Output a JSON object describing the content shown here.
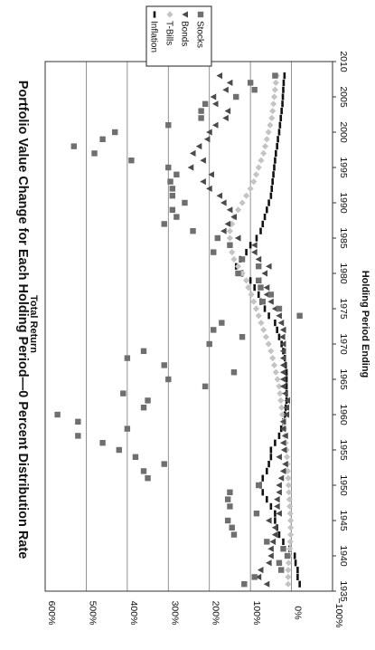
{
  "chart_data": {
    "type": "scatter",
    "title": "Portfolio Value Change for Each Holding Period—0 Percent Distribution Rate",
    "xlabel": "Holding Period Ending",
    "ylabel": "Total Return",
    "xlim": [
      1935,
      2010
    ],
    "ylim": [
      -100,
      600
    ],
    "xticks": [
      "1935",
      "1940",
      "1945",
      "1950",
      "1955",
      "1960",
      "1965",
      "1970",
      "1975",
      "1980",
      "1985",
      "1990",
      "1995",
      "2000",
      "2005",
      "2010"
    ],
    "yticks": [
      "−100%",
      "0%",
      "100%",
      "200%",
      "300%",
      "400%",
      "500%",
      "600%"
    ],
    "grid": "horizontal",
    "legend_position": "top-right",
    "orientation": "rotated 90° counterclockwise",
    "series": [
      {
        "name": "Stocks",
        "marker": "square",
        "color": "#6f6f6f",
        "x": [
          1936,
          1937,
          1938,
          1939,
          1940,
          1941,
          1942,
          1943,
          1944,
          1945,
          1946,
          1947,
          1948,
          1949,
          1950,
          1951,
          1952,
          1953,
          1954,
          1955,
          1956,
          1957,
          1958,
          1959,
          1960,
          1961,
          1962,
          1963,
          1964,
          1965,
          1966,
          1967,
          1968,
          1969,
          1970,
          1971,
          1972,
          1973,
          1974,
          1975,
          1976,
          1977,
          1978,
          1979,
          1980,
          1981,
          1982,
          1983,
          1984,
          1985,
          1986,
          1987,
          1988,
          1989,
          1990,
          1991,
          1992,
          1993,
          1994,
          1995,
          1996,
          1997,
          1998,
          1999,
          2000,
          2001,
          2002,
          2003,
          2004,
          2005,
          2006,
          2007,
          2008
        ],
        "y": [
          115,
          90,
          25,
          30,
          10,
          20,
          60,
          140,
          145,
          155,
          85,
          150,
          155,
          150,
          80,
          350,
          360,
          310,
          380,
          420,
          460,
          520,
          400,
          520,
          570,
          360,
          350,
          410,
          210,
          300,
          140,
          310,
          400,
          360,
          200,
          120,
          190,
          170,
          -20,
          30,
          70,
          50,
          75,
          80,
          130,
          80,
          120,
          190,
          150,
          180,
          240,
          310,
          280,
          290,
          260,
          290,
          290,
          295,
          280,
          300,
          390,
          480,
          530,
          460,
          430,
          300,
          220,
          220,
          210,
          135,
          90,
          100,
          40
        ]
      },
      {
        "name": "Bonds",
        "marker": "triangle",
        "color": "#4a4a4a",
        "x": [
          1936,
          1937,
          1938,
          1939,
          1940,
          1941,
          1942,
          1943,
          1944,
          1945,
          1946,
          1947,
          1948,
          1949,
          1950,
          1951,
          1952,
          1953,
          1954,
          1955,
          1956,
          1957,
          1958,
          1959,
          1960,
          1961,
          1962,
          1963,
          1964,
          1965,
          1966,
          1967,
          1968,
          1969,
          1970,
          1971,
          1972,
          1973,
          1974,
          1975,
          1976,
          1977,
          1978,
          1979,
          1980,
          1981,
          1982,
          1983,
          1984,
          1985,
          1986,
          1987,
          1988,
          1989,
          1990,
          1991,
          1992,
          1993,
          1994,
          1995,
          1996,
          1997,
          1998,
          1999,
          2000,
          2001,
          2002,
          2003,
          2004,
          2005,
          2006,
          2007,
          2008
        ],
        "y": [
          60,
          80,
          75,
          55,
          50,
          50,
          45,
          40,
          40,
          55,
          30,
          35,
          35,
          30,
          30,
          25,
          20,
          15,
          30,
          18,
          20,
          15,
          20,
          20,
          12,
          12,
          10,
          15,
          20,
          20,
          20,
          20,
          20,
          20,
          20,
          22,
          20,
          25,
          30,
          40,
          50,
          60,
          60,
          80,
          65,
          55,
          80,
          90,
          90,
          130,
          165,
          155,
          140,
          150,
          165,
          175,
          200,
          215,
          195,
          245,
          215,
          240,
          225,
          205,
          200,
          185,
          160,
          155,
          185,
          190,
          160,
          150,
          175
        ]
      },
      {
        "name": "T-Bills",
        "marker": "diamond",
        "color": "#c4c4c4",
        "x": [
          1936,
          1937,
          1938,
          1939,
          1940,
          1941,
          1942,
          1943,
          1944,
          1945,
          1946,
          1947,
          1948,
          1949,
          1950,
          1951,
          1952,
          1953,
          1954,
          1955,
          1956,
          1957,
          1958,
          1959,
          1960,
          1961,
          1962,
          1963,
          1964,
          1965,
          1966,
          1967,
          1968,
          1969,
          1970,
          1971,
          1972,
          1973,
          1974,
          1975,
          1976,
          1977,
          1978,
          1979,
          1980,
          1981,
          1982,
          1983,
          1984,
          1985,
          1986,
          1987,
          1988,
          1989,
          1990,
          1991,
          1992,
          1993,
          1994,
          1995,
          1996,
          1997,
          1998,
          1999,
          2000,
          2001,
          2002,
          2003,
          2004,
          2005,
          2006,
          2007,
          2008
        ],
        "y": [
          8,
          8,
          8,
          7,
          6,
          4,
          3,
          2,
          2,
          2,
          3,
          4,
          5,
          6,
          7,
          8,
          9,
          10,
          11,
          12,
          14,
          16,
          18,
          20,
          22,
          24,
          26,
          28,
          30,
          34,
          38,
          42,
          46,
          50,
          56,
          62,
          68,
          74,
          80,
          86,
          92,
          98,
          105,
          110,
          120,
          130,
          140,
          145,
          150,
          150,
          150,
          145,
          140,
          130,
          120,
          110,
          100,
          92,
          86,
          80,
          74,
          68,
          64,
          60,
          56,
          52,
          48,
          46,
          44,
          42,
          40,
          38,
          36
        ]
      },
      {
        "name": "Inflation",
        "marker": "dash",
        "color": "#111111",
        "x": [
          1936,
          1937,
          1938,
          1939,
          1940,
          1941,
          1942,
          1943,
          1944,
          1945,
          1946,
          1947,
          1948,
          1949,
          1950,
          1951,
          1952,
          1953,
          1954,
          1955,
          1956,
          1957,
          1958,
          1959,
          1960,
          1961,
          1962,
          1963,
          1964,
          1965,
          1966,
          1967,
          1968,
          1969,
          1970,
          1971,
          1972,
          1973,
          1974,
          1975,
          1976,
          1977,
          1978,
          1979,
          1980,
          1981,
          1982,
          1983,
          1984,
          1985,
          1986,
          1987,
          1988,
          1989,
          1990,
          1991,
          1992,
          1993,
          1994,
          1995,
          1996,
          1997,
          1998,
          1999,
          2000,
          2001,
          2002,
          2003,
          2004,
          2005,
          2006,
          2007,
          2008
        ],
        "y": [
          -20,
          -15,
          -15,
          -10,
          -8,
          5,
          20,
          30,
          35,
          40,
          40,
          50,
          60,
          70,
          75,
          70,
          60,
          55,
          50,
          50,
          40,
          30,
          25,
          20,
          16,
          14,
          12,
          12,
          12,
          12,
          12,
          14,
          16,
          20,
          24,
          30,
          35,
          40,
          55,
          65,
          75,
          80,
          90,
          100,
          120,
          135,
          125,
          110,
          100,
          85,
          75,
          70,
          65,
          60,
          55,
          50,
          48,
          46,
          44,
          42,
          40,
          38,
          35,
          33,
          30,
          28,
          26,
          24,
          22,
          21,
          20,
          19,
          17
        ]
      }
    ]
  }
}
